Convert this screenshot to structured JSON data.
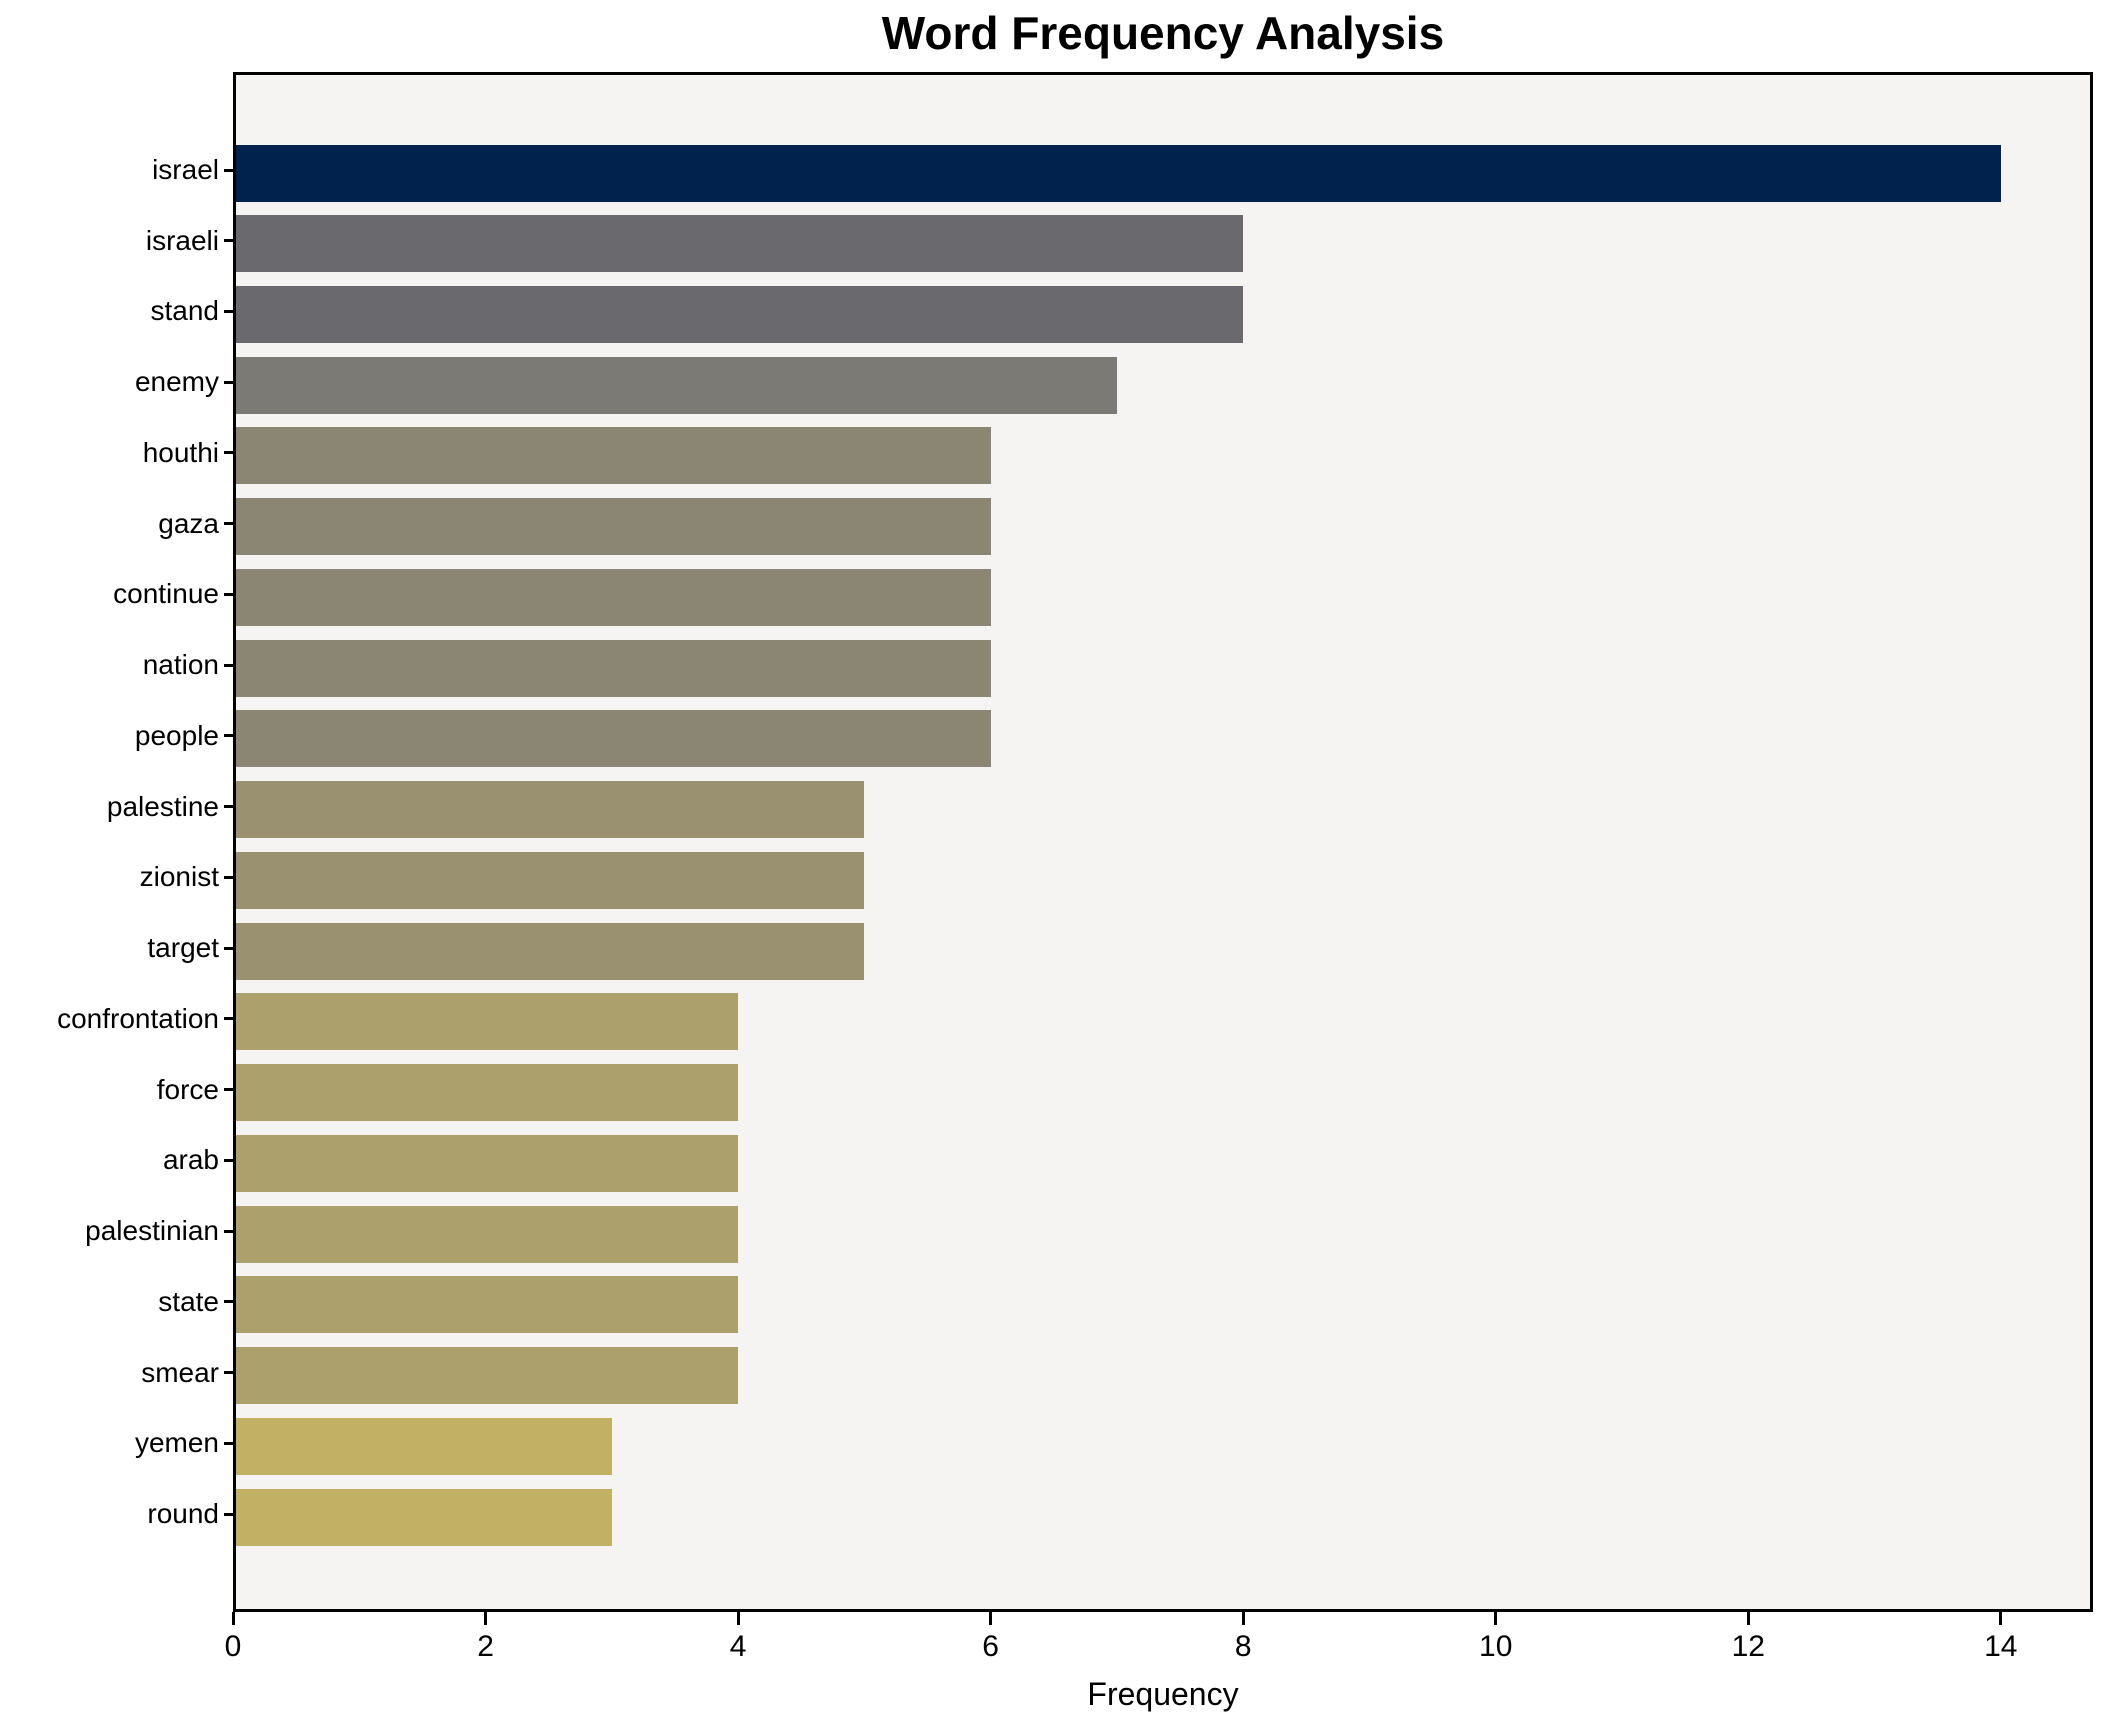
{
  "chart_data": {
    "type": "bar",
    "orientation": "horizontal",
    "title": "Word Frequency Analysis",
    "xlabel": "Frequency",
    "ylabel": "",
    "categories": [
      "israel",
      "israeli",
      "stand",
      "enemy",
      "houthi",
      "gaza",
      "continue",
      "nation",
      "people",
      "palestine",
      "zionist",
      "target",
      "confrontation",
      "force",
      "arab",
      "palestinian",
      "state",
      "smear",
      "yemen",
      "round"
    ],
    "values": [
      14,
      8,
      8,
      7,
      6,
      6,
      6,
      6,
      6,
      5,
      5,
      5,
      4,
      4,
      4,
      4,
      4,
      4,
      3,
      3
    ],
    "bar_colors": [
      "#01224d",
      "#6a696e",
      "#6a696e",
      "#7b7a74",
      "#8b8674",
      "#8b8674",
      "#8b8674",
      "#8b8674",
      "#8b8674",
      "#9a9171",
      "#9a9171",
      "#9a9171",
      "#aca16c",
      "#aca16c",
      "#aca16c",
      "#aca16c",
      "#aca16c",
      "#aca16c",
      "#c2b165",
      "#c2b165"
    ],
    "xlim": [
      0,
      14.73
    ],
    "xticks": [
      0,
      2,
      4,
      6,
      8,
      10,
      12,
      14
    ],
    "grid": false,
    "legend": false,
    "plot_background": "#f5f4f2",
    "spine_color": "#000000",
    "text_color": "#000000"
  }
}
